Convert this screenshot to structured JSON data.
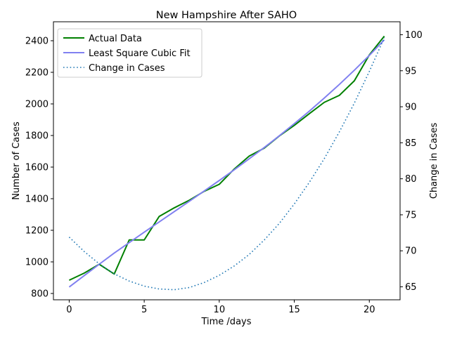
{
  "chart_data": {
    "type": "line",
    "title": "New Hampshire After SAHO",
    "xlabel": "Time /days",
    "ylabel": "Number of Cases",
    "y2label": "Change in Cases",
    "xlim": [
      -1.05,
      22.05
    ],
    "ylim": [
      760,
      2520
    ],
    "y2lim": [
      63.2,
      101.8
    ],
    "xticks": [
      0,
      5,
      10,
      15,
      20
    ],
    "yticks": [
      800,
      1000,
      1200,
      1400,
      1600,
      1800,
      2000,
      2200,
      2400
    ],
    "y2ticks": [
      65,
      70,
      75,
      80,
      85,
      90,
      95,
      100
    ],
    "grid": false,
    "legend_position": "top-left",
    "x": [
      0,
      1,
      2,
      3,
      4,
      5,
      6,
      7,
      8,
      9,
      10,
      11,
      12,
      13,
      14,
      15,
      16,
      17,
      18,
      19,
      20,
      21
    ],
    "series": [
      {
        "name": "Actual Data",
        "axis": "left",
        "color": "#008000",
        "style": "solid",
        "values": [
          884,
          929,
          985,
          923,
          1139,
          1139,
          1288,
          1342,
          1390,
          1447,
          1491,
          1588,
          1670,
          1720,
          1797,
          1864,
          1938,
          2010,
          2054,
          2146,
          2310,
          2429
        ]
      },
      {
        "name": "Least Square Cubic Fit",
        "axis": "left",
        "color": "#8080f0",
        "style": "solid",
        "values": [
          841,
          913,
          985,
          1056,
          1122,
          1188,
          1253,
          1318,
          1383,
          1449,
          1515,
          1583,
          1653,
          1724,
          1798,
          1875,
          1954,
          2037,
          2123,
          2213,
          2307,
          2406
        ]
      },
      {
        "name": "Change in Cases",
        "axis": "right",
        "color": "#1f77b4",
        "style": "dotted",
        "values": [
          71.9,
          69.9,
          68.2,
          66.8,
          65.8,
          65.1,
          64.7,
          64.6,
          64.9,
          65.6,
          66.6,
          67.9,
          69.5,
          71.5,
          73.8,
          76.5,
          79.5,
          82.8,
          86.5,
          90.5,
          94.9,
          99.6
        ]
      }
    ]
  }
}
